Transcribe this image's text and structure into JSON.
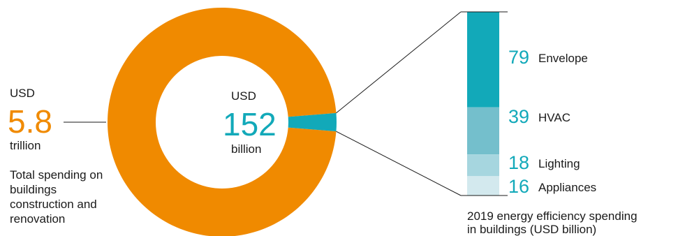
{
  "colors": {
    "total": "#f08a00",
    "efficiency": "#12a9b9",
    "envelope": "#12a9b9",
    "hvac": "#74bfcc",
    "lighting": "#a6d6df",
    "appliances": "#d3e9ee",
    "text": "#1a1a1a",
    "line": "#1a1a1a"
  },
  "left_callout": {
    "currency": "USD",
    "value": "5.8",
    "unit": "trillion",
    "description": "Total spending on buildings construction and renovation"
  },
  "center_callout": {
    "currency": "USD",
    "value": "152",
    "unit": "billion"
  },
  "caption": {
    "line1": "2019 energy efficiency spending",
    "line2": "in buildings (USD billion)"
  },
  "chart_data": [
    {
      "type": "pie",
      "variant": "donut",
      "slices": [
        {
          "label": "Total spending on buildings construction and renovation",
          "value": 5800
        },
        {
          "label": "Energy efficiency spending",
          "value": 152
        }
      ],
      "unit": "USD billion"
    },
    {
      "type": "bar",
      "variant": "stacked",
      "title": "2019 energy efficiency spending in buildings (USD billion)",
      "categories": [
        "Envelope",
        "HVAC",
        "Lighting",
        "Appliances"
      ],
      "values": [
        79,
        39,
        18,
        16
      ],
      "total": 152
    }
  ]
}
